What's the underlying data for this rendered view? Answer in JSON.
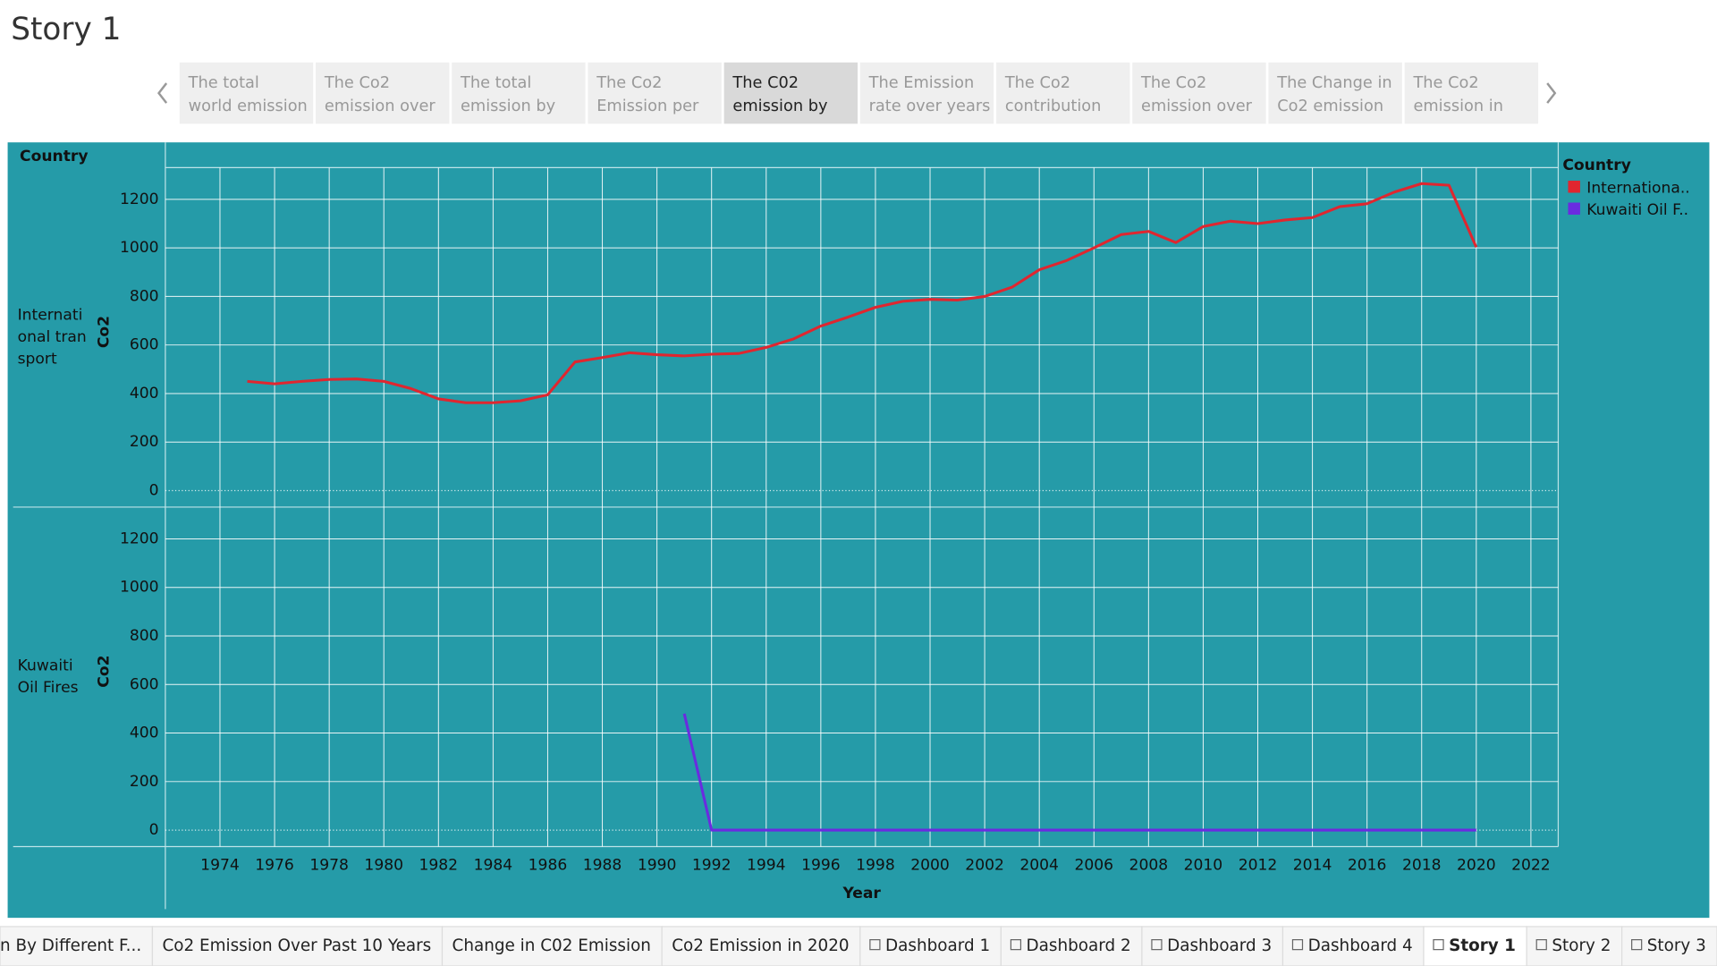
{
  "header": {
    "title": "Story 1"
  },
  "story_points": [
    [
      "The total",
      "world emission"
    ],
    [
      "The  Co2",
      "emission over"
    ],
    [
      "The total",
      "emission by"
    ],
    [
      "The Co2",
      "Emission per"
    ],
    [
      "The C02",
      "emission by"
    ],
    [
      "The Emission",
      "rate over years"
    ],
    [
      "The Co2",
      "contribution"
    ],
    [
      "The Co2",
      "emission over"
    ],
    [
      "The Change in",
      "Co2 emission"
    ],
    [
      "The Co2",
      "emission in"
    ]
  ],
  "active_story_point": 4,
  "chart_data": {
    "type": "line",
    "column_header": "Country",
    "x_label": "Year",
    "y_label": "Co2",
    "legend_title": "Country",
    "legend": "right",
    "grid": true,
    "x": [
      1975,
      1976,
      1977,
      1978,
      1979,
      1980,
      1981,
      1982,
      1983,
      1984,
      1985,
      1986,
      1987,
      1988,
      1989,
      1990,
      1991,
      1992,
      1993,
      1994,
      1995,
      1996,
      1997,
      1998,
      1999,
      2000,
      2001,
      2002,
      2003,
      2004,
      2005,
      2006,
      2007,
      2008,
      2009,
      2010,
      2011,
      2012,
      2013,
      2014,
      2015,
      2016,
      2017,
      2018,
      2019,
      2020
    ],
    "xlim": [
      1972,
      2023
    ],
    "xticks": [
      1974,
      1976,
      1978,
      1980,
      1982,
      1984,
      1986,
      1988,
      1990,
      1992,
      1994,
      1996,
      1998,
      2000,
      2002,
      2004,
      2006,
      2008,
      2010,
      2012,
      2014,
      2016,
      2018,
      2020,
      2022
    ],
    "ylim": [
      -68,
      1331
    ],
    "yticks": [
      0,
      200,
      400,
      600,
      800,
      1000,
      1200
    ],
    "series": [
      {
        "name": "Internationa..",
        "row_label": "International transport",
        "color": "#e0262f",
        "values": [
          450,
          440,
          450,
          458,
          460,
          450,
          420,
          378,
          362,
          362,
          370,
          395,
          530,
          548,
          568,
          560,
          555,
          562,
          565,
          590,
          625,
          678,
          715,
          755,
          780,
          788,
          785,
          800,
          838,
          910,
          948,
          1000,
          1055,
          1068,
          1022,
          1088,
          1110,
          1100,
          1115,
          1125,
          1170,
          1182,
          1230,
          1265,
          1258,
          1003
        ]
      },
      {
        "name": "Kuwaiti Oil F..",
        "row_label": "Kuwaiti Oil Fires",
        "color": "#6a2be0",
        "values": [
          null,
          null,
          null,
          null,
          null,
          null,
          null,
          null,
          null,
          null,
          null,
          null,
          null,
          null,
          null,
          null,
          480,
          0,
          0,
          0,
          0,
          0,
          0,
          0,
          0,
          0,
          0,
          0,
          0,
          0,
          0,
          0,
          0,
          0,
          0,
          0,
          0,
          0,
          0,
          0,
          0,
          0,
          0,
          0,
          0,
          0
        ]
      }
    ]
  },
  "sheet_tabs": [
    "n By Different F...",
    "Co2 Emission Over Past 10 Years",
    "Change in C02 Emission",
    "Co2 Emission in 2020",
    "Dashboard 1",
    "Dashboard 2",
    "Dashboard 3",
    "Dashboard 4",
    "Story 1",
    "Story 2",
    "Story 3"
  ],
  "active_sheet_tab": 8
}
